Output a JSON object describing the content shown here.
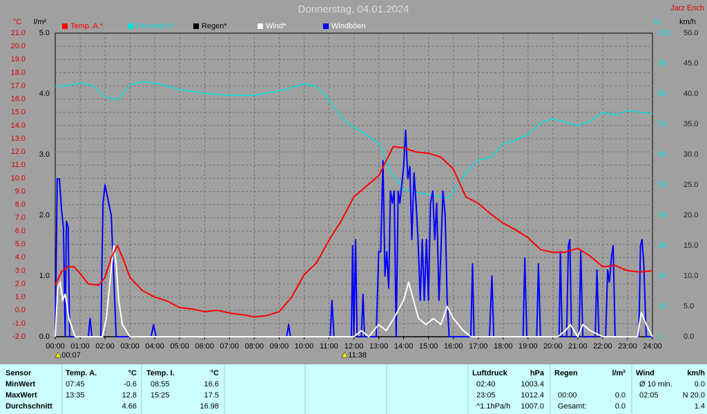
{
  "chart_data": {
    "type": "line",
    "title": "Donnerstag, 04.01.2024",
    "author": "Jarz Erich",
    "ylabel": "°C",
    "y4label": "l/m²",
    "y2label": "%",
    "y3label": "km/h",
    "xlim": [
      0,
      24
    ],
    "xticks": [
      {
        "value": 0,
        "label": "00:00"
      },
      {
        "value": 1,
        "label": "01:00"
      },
      {
        "value": 2,
        "label": "02:00"
      },
      {
        "value": 3,
        "label": "03:00"
      },
      {
        "value": 4,
        "label": "04:00"
      },
      {
        "value": 5,
        "label": "05:00"
      },
      {
        "value": 6,
        "label": "06:00"
      },
      {
        "value": 7,
        "label": "07:00"
      },
      {
        "value": 8,
        "label": "08:00"
      },
      {
        "value": 9,
        "label": "09:00"
      },
      {
        "value": 10,
        "label": "10:00"
      },
      {
        "value": 11,
        "label": "11:00"
      },
      {
        "value": 12,
        "label": "12:00"
      },
      {
        "value": 13,
        "label": "13:00"
      },
      {
        "value": 14,
        "label": "14:00"
      },
      {
        "value": 15,
        "label": "15:00"
      },
      {
        "value": 16,
        "label": "16:00"
      },
      {
        "value": 17,
        "label": "17:00"
      },
      {
        "value": 18,
        "label": "18:00"
      },
      {
        "value": 19,
        "label": "19:00"
      },
      {
        "value": 20,
        "label": "20:00"
      },
      {
        "value": 21,
        "label": "21:00"
      },
      {
        "value": 22,
        "label": "22:00"
      },
      {
        "value": 23,
        "label": "23:00"
      },
      {
        "value": 24,
        "label": "24:00"
      }
    ],
    "ylim": [
      -2,
      21
    ],
    "yticks": [
      {
        "value": -2,
        "label": "-2.0"
      },
      {
        "value": -1,
        "label": "-1.0"
      },
      {
        "value": 0,
        "label": "0.0"
      },
      {
        "value": 1,
        "label": "1.0"
      },
      {
        "value": 2,
        "label": "2.0"
      },
      {
        "value": 3,
        "label": "3.0"
      },
      {
        "value": 4,
        "label": "4.0"
      },
      {
        "value": 5,
        "label": "5.0"
      },
      {
        "value": 6,
        "label": "6.0"
      },
      {
        "value": 7,
        "label": "7.0"
      },
      {
        "value": 8,
        "label": "8.0"
      },
      {
        "value": 9,
        "label": "9.0"
      },
      {
        "value": 10,
        "label": "10.0"
      },
      {
        "value": 11,
        "label": "11.0"
      },
      {
        "value": 12,
        "label": "12.0"
      },
      {
        "value": 13,
        "label": "13.0"
      },
      {
        "value": 14,
        "label": "14.0"
      },
      {
        "value": 15,
        "label": "15.0"
      },
      {
        "value": 16,
        "label": "16.0"
      },
      {
        "value": 17,
        "label": "17.0"
      },
      {
        "value": 18,
        "label": "18.0"
      },
      {
        "value": 19,
        "label": "19.0"
      },
      {
        "value": 20,
        "label": "20.0"
      },
      {
        "value": 21,
        "label": "21.0"
      }
    ],
    "y4lim": [
      0,
      5
    ],
    "y4ticks": [
      {
        "value": 0,
        "label": "0.0"
      },
      {
        "value": 1,
        "label": "1.0"
      },
      {
        "value": 2,
        "label": "2.0"
      },
      {
        "value": 3,
        "label": "3.0"
      },
      {
        "value": 4,
        "label": "4.0"
      },
      {
        "value": 5,
        "label": "5.0"
      }
    ],
    "y2lim": [
      0,
      100
    ],
    "y2ticks": [
      0,
      10,
      20,
      30,
      40,
      50,
      60,
      70,
      80,
      90,
      100
    ],
    "y3lim": [
      0,
      50
    ],
    "y3ticks": [
      {
        "value": 0,
        "label": "0.0"
      },
      {
        "value": 5,
        "label": "5.0"
      },
      {
        "value": 10,
        "label": "10.0"
      },
      {
        "value": 15,
        "label": "15.0"
      },
      {
        "value": 20,
        "label": "20.0"
      },
      {
        "value": 25,
        "label": "25.0"
      },
      {
        "value": 30,
        "label": "30.0"
      },
      {
        "value": 35,
        "label": "35.0"
      },
      {
        "value": 40,
        "label": "40.0"
      },
      {
        "value": 45,
        "label": "45.0"
      },
      {
        "value": 50,
        "label": "50.0"
      }
    ],
    "grid": true,
    "series": [
      {
        "name": "Temp. A.*",
        "color": "#ff0000",
        "axis": "y",
        "x": [
          0,
          0.25,
          0.5,
          0.75,
          1,
          1.33,
          1.75,
          2,
          2.25,
          2.5,
          2.75,
          3,
          3.5,
          4,
          4.5,
          5,
          5.5,
          6,
          6.5,
          7,
          7.75,
          8,
          8.5,
          9,
          9.5,
          10,
          10.5,
          11,
          11.5,
          12,
          12.5,
          13,
          13.58,
          14,
          14.5,
          15,
          15.5,
          16,
          16.5,
          17,
          17.5,
          18,
          18.5,
          19,
          19.5,
          20,
          20.5,
          21,
          21.5,
          22,
          22.5,
          23,
          23.5,
          24
        ],
        "values": [
          1.9,
          2.9,
          3.3,
          3.3,
          2.8,
          2.0,
          1.9,
          2.5,
          4.0,
          4.9,
          3.8,
          2.5,
          1.5,
          1.0,
          0.7,
          0.2,
          0.1,
          -0.1,
          0.0,
          -0.2,
          -0.4,
          -0.5,
          -0.4,
          -0.1,
          1.0,
          2.7,
          3.6,
          5.3,
          6.8,
          8.6,
          9.4,
          10.2,
          12.4,
          12.3,
          12.0,
          11.9,
          11.6,
          10.7,
          8.6,
          8.1,
          7.3,
          6.6,
          6.1,
          5.5,
          4.6,
          4.4,
          4.4,
          4.7,
          4.1,
          3.3,
          3.4,
          3.0,
          2.9,
          3.0
        ]
      },
      {
        "name": "Feuchte A.*",
        "color": "#00e0e0",
        "axis": "y2",
        "x": [
          0,
          0.5,
          1,
          1.5,
          2,
          2.5,
          3,
          3.5,
          4,
          5,
          6,
          7,
          8,
          9,
          10,
          10.5,
          11,
          11.5,
          12,
          12.5,
          13,
          13.5,
          14,
          15,
          15.83,
          16.5,
          17,
          17.5,
          18,
          18.5,
          19,
          19.5,
          20,
          21,
          21.5,
          22,
          22.5,
          23,
          24
        ],
        "values": [
          82.5,
          82.7,
          83.6,
          82.7,
          79,
          78,
          83,
          84,
          83.6,
          81.4,
          80.2,
          79.5,
          79.5,
          81,
          83.2,
          82.5,
          78,
          72.3,
          68.9,
          66.6,
          63.9,
          54,
          48.4,
          46.8,
          45.7,
          54,
          58.2,
          59,
          63.6,
          64.8,
          66.6,
          70.5,
          71.8,
          69.5,
          70.9,
          74,
          73,
          74.5,
          73.4
        ]
      },
      {
        "name": "Regen*",
        "color": "#000000",
        "axis": "y4",
        "x": [
          0,
          24
        ],
        "values": [
          0,
          0
        ]
      },
      {
        "name": "Wind*",
        "color": "#ffffff",
        "axis": "y3",
        "x": [
          0,
          0.1,
          0.2,
          0.3,
          0.4,
          0.55,
          0.8,
          1.9,
          2.05,
          2.2,
          2.35,
          2.45,
          2.55,
          2.7,
          3,
          12,
          12.3,
          12.6,
          13,
          13.3,
          13.6,
          14,
          14.2,
          14.4,
          14.6,
          14.9,
          15.2,
          15.5,
          15.75,
          16,
          16.4,
          16.7,
          20.2,
          20.5,
          20.7,
          21,
          21.2,
          21.5,
          22,
          23.4,
          23.55,
          23.75,
          24
        ],
        "values": [
          0,
          8,
          9,
          6,
          7,
          3,
          0,
          0,
          3,
          9,
          15,
          12,
          6,
          2,
          0,
          0,
          1,
          0,
          2,
          1,
          3,
          6,
          9,
          6,
          3,
          2,
          3,
          2,
          5,
          3,
          1,
          0,
          0,
          1,
          2,
          0,
          2,
          1,
          0,
          0,
          4,
          2,
          0
        ]
      },
      {
        "name": "Windböen",
        "color": "#0000ff",
        "axis": "y3",
        "x": [
          0,
          0.08,
          0.17,
          0.25,
          0.33,
          0.4,
          0.45,
          0.52,
          0.58,
          1.33,
          1.4,
          1.47,
          1.83,
          1.92,
          2,
          2.1,
          2.25,
          2.35,
          2.45,
          3.85,
          3.95,
          4.05,
          9.3,
          9.38,
          9.45,
          11.05,
          11.12,
          11.2,
          11.9,
          11.95,
          12,
          12.07,
          12.13,
          12.3,
          12.37,
          12.43,
          12.9,
          13,
          13.08,
          13.17,
          13.25,
          13.32,
          13.4,
          13.47,
          13.55,
          13.62,
          13.7,
          13.78,
          13.85,
          14,
          14.08,
          14.17,
          14.25,
          14.33,
          14.42,
          14.5,
          14.58,
          14.67,
          14.75,
          14.83,
          14.92,
          15,
          15.08,
          15.17,
          15.25,
          15.33,
          15.42,
          15.5,
          15.58,
          15.67,
          15.75,
          15.83,
          16.7,
          16.77,
          16.83,
          17.45,
          17.55,
          17.62,
          18.8,
          18.87,
          18.95,
          19.35,
          19.42,
          19.5,
          20.25,
          20.3,
          20.37,
          20.55,
          20.62,
          20.68,
          20.75,
          21.05,
          21.12,
          21.2,
          21.7,
          21.77,
          21.85,
          22.12,
          22.2,
          22.27,
          22.35,
          22.42,
          22.5,
          23.45,
          23.52,
          23.58,
          23.65,
          23.75,
          24
        ],
        "values": [
          0,
          26,
          26,
          21,
          18,
          0,
          19,
          18,
          0,
          0,
          3,
          0,
          0,
          22,
          25,
          23,
          20,
          10,
          0,
          0,
          2,
          0,
          0,
          2,
          0,
          0,
          6,
          0,
          0,
          15,
          0,
          16,
          0,
          0,
          7,
          0,
          0,
          14,
          14,
          29,
          10,
          14,
          8,
          24,
          22,
          24,
          0,
          24,
          22,
          28,
          34,
          26,
          28,
          16,
          27,
          22,
          16,
          6,
          16,
          6,
          16,
          6,
          22,
          24,
          16,
          22,
          6,
          14,
          24,
          20,
          6,
          0,
          0,
          12,
          0,
          0,
          10,
          0,
          0,
          13,
          0,
          0,
          12,
          0,
          0,
          14,
          0,
          0,
          15,
          16,
          0,
          0,
          14,
          0,
          0,
          11,
          0,
          0,
          11,
          9,
          13,
          15,
          0,
          0,
          15,
          16,
          12,
          0,
          0
        ]
      }
    ],
    "annotations": [
      {
        "x": 0.117,
        "text": "00:07"
      },
      {
        "x": 11.633,
        "text": "11:38"
      }
    ]
  },
  "table": {
    "row_labels": [
      "Sensor",
      "MinWert",
      "MaxWert",
      "Durchschnitt"
    ],
    "groups": [
      {
        "name": "Temp. A.",
        "unit": "°C",
        "rows": [
          [
            "07:45",
            "-0.6"
          ],
          [
            "13:35",
            "12.8"
          ],
          [
            null,
            "4.66"
          ]
        ]
      },
      {
        "name": "Temp. I.",
        "unit": "°C",
        "rows": [
          [
            "08:55",
            "16.6"
          ],
          [
            "15:25",
            "17.5"
          ],
          [
            null,
            "16.98"
          ]
        ]
      },
      {
        "name": "Luftdruck",
        "unit": "hPa",
        "rows": [
          [
            "02:40",
            "1003.4"
          ],
          [
            "23:05",
            "1012.4"
          ],
          [
            "^1.1hPa/h",
            "1007.0"
          ]
        ]
      },
      {
        "name": "Regen",
        "unit": "l/m²",
        "rows": [
          [
            null,
            null
          ],
          [
            "00:00",
            "0.0"
          ],
          [
            "Gesamt:",
            "0.0"
          ]
        ]
      },
      {
        "name": "Wind",
        "unit": "km/h",
        "rows": [
          [
            "Ø 10 min.",
            "0.0"
          ],
          [
            "02:05",
            "N 20.0"
          ],
          [
            null,
            "1.4"
          ]
        ]
      }
    ]
  }
}
